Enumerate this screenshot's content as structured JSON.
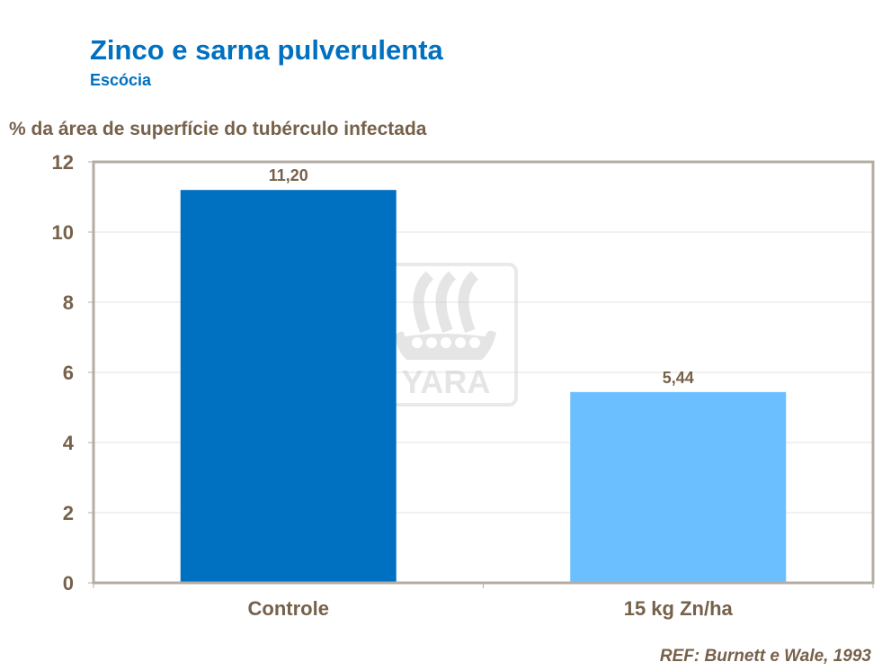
{
  "title": "Zinco e sarna pulverulenta",
  "subtitle": "Escócia",
  "reference": "REF: Burnett e Wale, 1993",
  "watermark": "YARA",
  "chart_data": {
    "type": "bar",
    "title": "Zinco e sarna pulverulenta",
    "subtitle": "Escócia",
    "ylabel": "% da área de superfície do tubérculo infectada",
    "xlabel": "",
    "categories": [
      "Controle",
      "15 kg Zn/ha"
    ],
    "values": [
      11.2,
      5.44
    ],
    "data_labels": [
      "11,20",
      "5,44"
    ],
    "colors": [
      "#0070c0",
      "#6bbfff"
    ],
    "ylim": [
      0,
      12
    ],
    "yticks": [
      0,
      2,
      4,
      6,
      8,
      10,
      12
    ],
    "grid": true,
    "text_color": "#76614a"
  }
}
